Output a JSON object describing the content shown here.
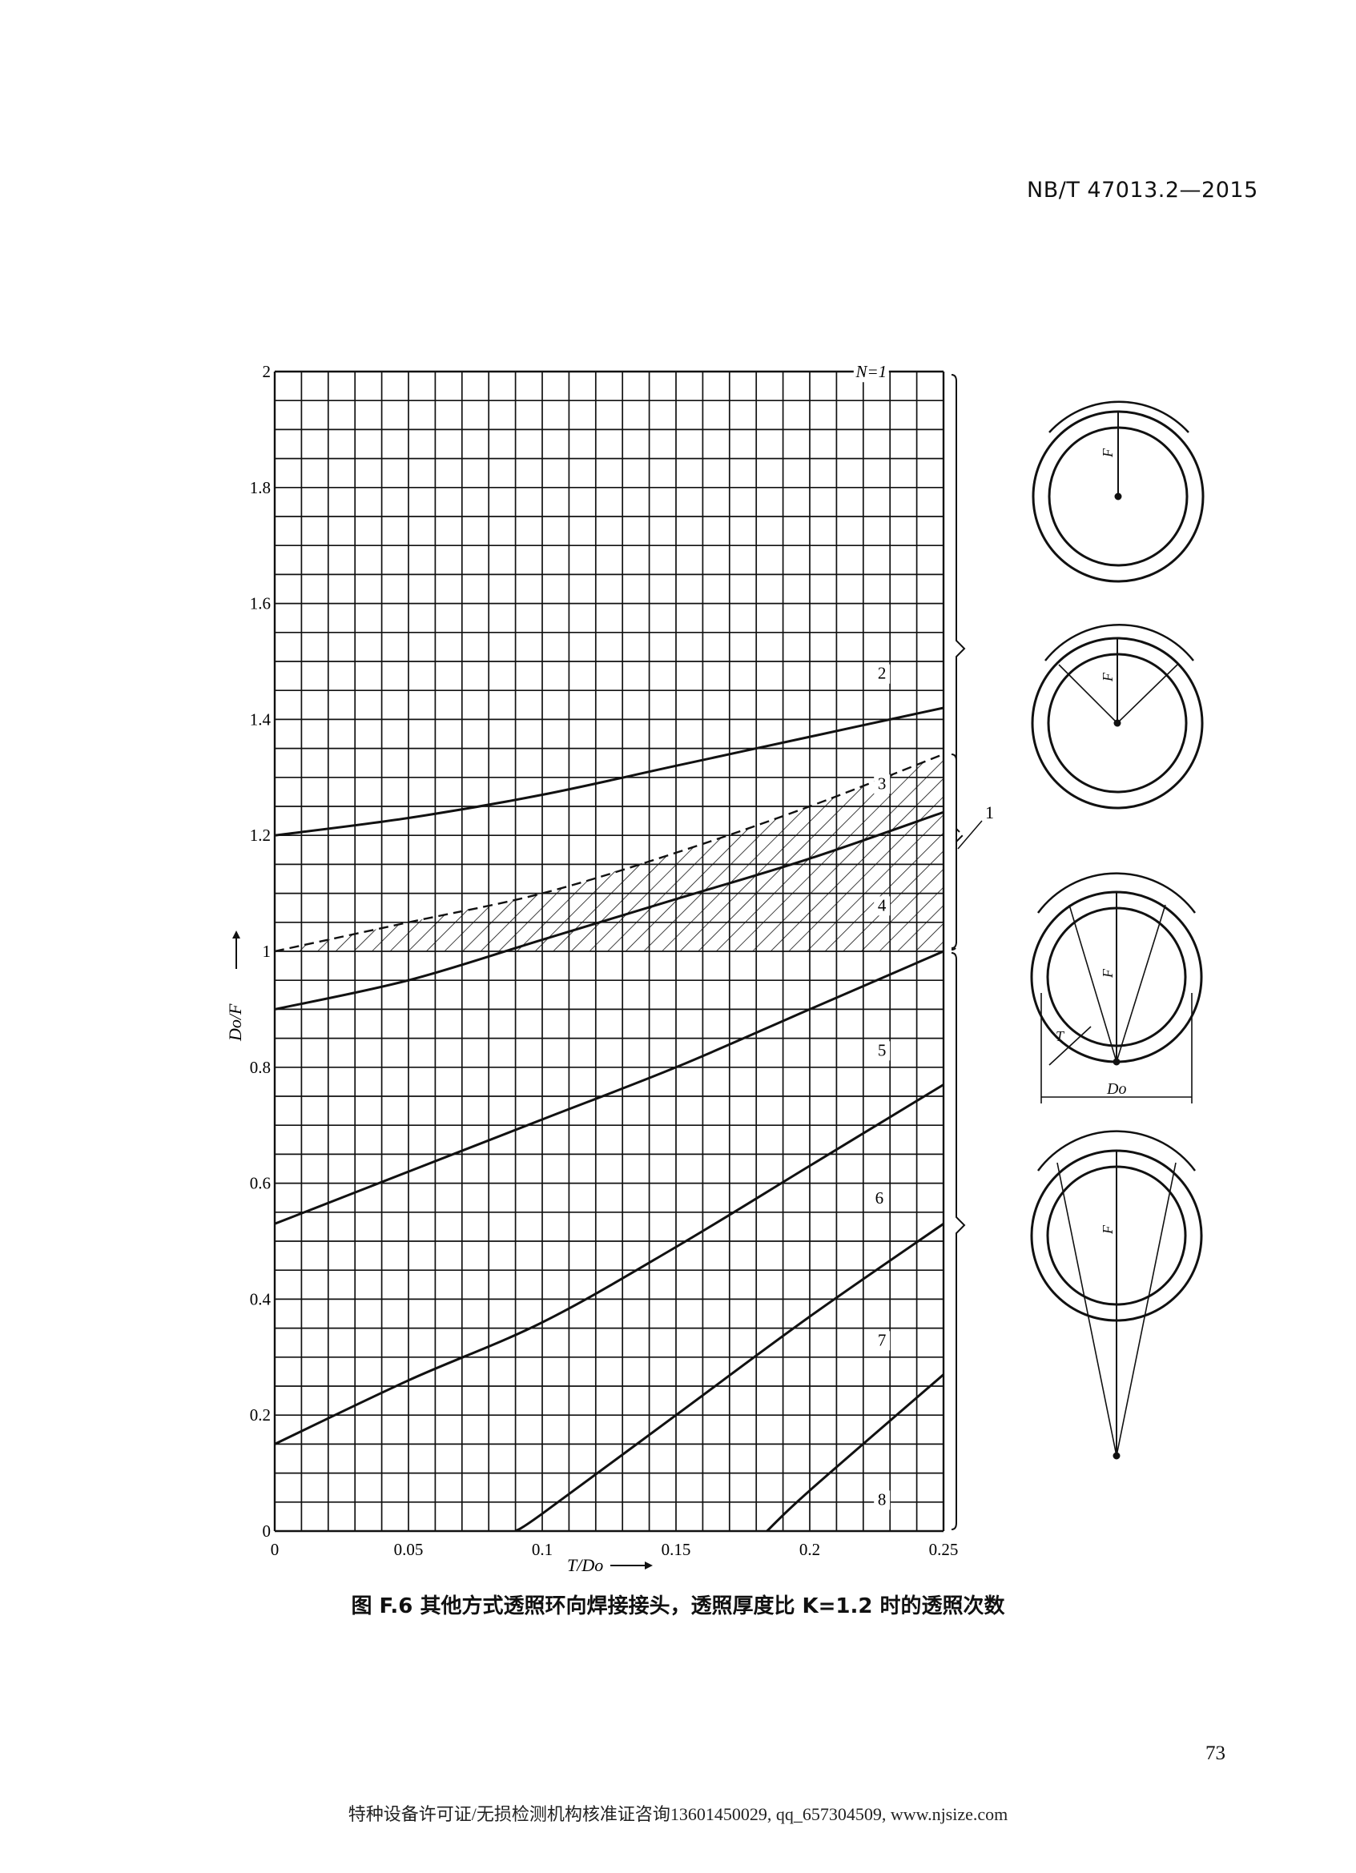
{
  "header": {
    "standard_code": "NB/T 47013.2—2015"
  },
  "caption": "图 F.6   其他方式透照环向焊接接头，透照厚度比 K=1.2 时的透照次数",
  "page_number": "73",
  "footer": "特种设备许可证/无损检测机构核准证咨询13601450029, qq_657304509, www.njsize.com",
  "callout_label": "1",
  "diagram_labels": {
    "F": "F",
    "T": "T",
    "Do": "Do"
  },
  "chart_data": {
    "type": "line",
    "title": "",
    "xlabel": "T/Do",
    "ylabel": "Do/F",
    "xlim": [
      0,
      0.25
    ],
    "ylim": [
      0,
      2
    ],
    "x_ticks": [
      "0",
      "0.05",
      "0.1",
      "0.15",
      "0.2",
      "0.25"
    ],
    "y_ticks": [
      "0",
      "0.2",
      "0.4",
      "0.6",
      "0.8",
      "1",
      "1.2",
      "1.4",
      "1.6",
      "1.8",
      "2"
    ],
    "grid": true,
    "grid_step_x": 0.01,
    "grid_step_y": 0.05,
    "region_labels": [
      "N=1",
      "2",
      "3",
      "4",
      "5",
      "6",
      "7",
      "8"
    ],
    "series": [
      {
        "style": "solid",
        "x": [
          0,
          0.05,
          0.1,
          0.15,
          0.2,
          0.25
        ],
        "y": [
          1.2,
          1.23,
          1.27,
          1.32,
          1.37,
          1.42
        ]
      },
      {
        "style": "dashed",
        "x": [
          0,
          0.05,
          0.1,
          0.15,
          0.2,
          0.25
        ],
        "y": [
          1.0,
          1.05,
          1.1,
          1.17,
          1.25,
          1.34
        ]
      },
      {
        "style": "solid",
        "x": [
          0,
          0.05,
          0.1,
          0.15,
          0.2,
          0.25
        ],
        "y": [
          0.9,
          0.95,
          1.02,
          1.09,
          1.16,
          1.24
        ]
      },
      {
        "style": "solid",
        "x": [
          0,
          0.05,
          0.1,
          0.15,
          0.2,
          0.25
        ],
        "y": [
          0.53,
          0.62,
          0.71,
          0.8,
          0.9,
          1.0
        ]
      },
      {
        "style": "solid",
        "x": [
          0,
          0.05,
          0.1,
          0.15,
          0.2,
          0.25
        ],
        "y": [
          0.15,
          0.26,
          0.36,
          0.49,
          0.63,
          0.77
        ]
      },
      {
        "style": "solid",
        "x": [
          0.09,
          0.1,
          0.15,
          0.2,
          0.25
        ],
        "y": [
          0,
          0.03,
          0.2,
          0.37,
          0.53
        ]
      },
      {
        "style": "solid",
        "x": [
          0.184,
          0.2,
          0.25
        ],
        "y": [
          0,
          0.07,
          0.27
        ]
      }
    ],
    "hatched_region": {
      "between": [
        "y=1",
        "dashed series"
      ],
      "x": [
        0,
        0.25
      ]
    }
  }
}
